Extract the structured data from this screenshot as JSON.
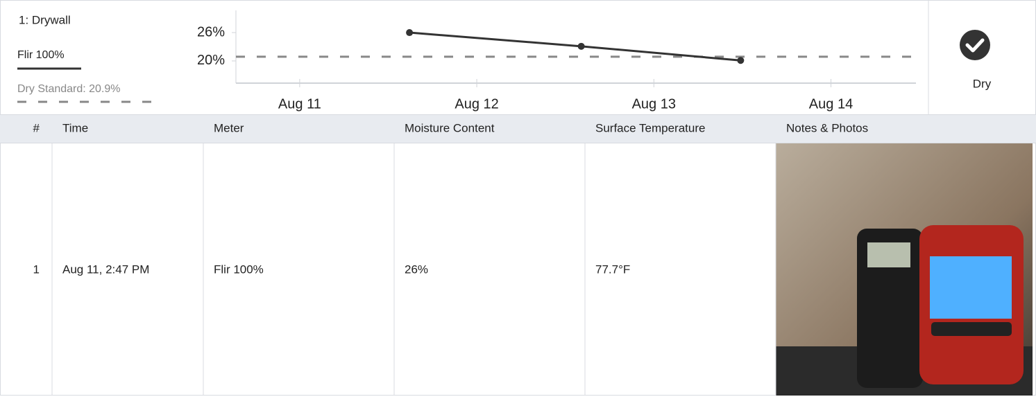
{
  "panel": {
    "title": "1: Drywall",
    "status": "Dry"
  },
  "chart_data": {
    "type": "line",
    "x": [
      11.62,
      12.59,
      13.49
    ],
    "xlim": [
      10.64,
      14.48
    ],
    "xticks": [
      {
        "value": 11,
        "label": "Aug 11"
      },
      {
        "value": 12,
        "label": "Aug 12"
      },
      {
        "value": 13,
        "label": "Aug 13"
      },
      {
        "value": 14,
        "label": "Aug 14"
      }
    ],
    "ylim": [
      15.3,
      30.7
    ],
    "yticks": [
      {
        "value": 20,
        "label": "20%"
      },
      {
        "value": 26,
        "label": "26%"
      }
    ],
    "series": [
      {
        "name": "Flir 100%",
        "color": "#333333",
        "values": [
          26,
          23.1,
          20.1
        ]
      }
    ],
    "reference_line": {
      "value": 20.9,
      "label": "Dry Standard: 20.9%",
      "color": "#888888"
    }
  },
  "table": {
    "headers": [
      "#",
      "Time",
      "Meter",
      "Moisture Content",
      "Surface Temperature",
      "Notes & Photos"
    ],
    "rows": [
      [
        "1",
        "Aug 11, 2:47 PM",
        "Flir 100%",
        "26%",
        "77.7°F"
      ]
    ]
  }
}
